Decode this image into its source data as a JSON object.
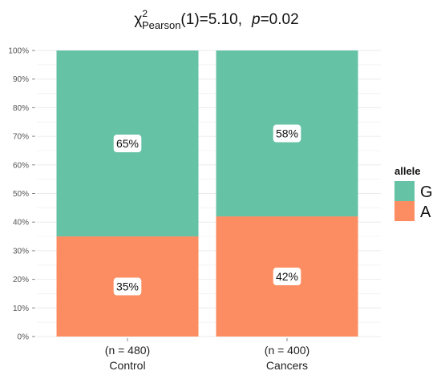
{
  "chart_data": {
    "type": "bar",
    "stacked": true,
    "percent": true,
    "title": {
      "chi": "χ",
      "sup": "2",
      "sub": "Pearson",
      "df": "(1)=5.10,",
      "p_label": "p",
      "p_value": "=0.02"
    },
    "categories": [
      "Control",
      "Cancers"
    ],
    "n_labels": [
      "(n = 480)",
      "(n = 400)"
    ],
    "series": [
      {
        "name": "A",
        "values": [
          35,
          42
        ],
        "labels": [
          "35%",
          "42%"
        ],
        "color": "#fc8d62"
      },
      {
        "name": "G",
        "values": [
          65,
          58
        ],
        "labels": [
          "65%",
          "58%"
        ],
        "color": "#66c2a5"
      }
    ],
    "ylim": [
      0,
      100
    ],
    "yticks": [
      "0%",
      "10%",
      "20%",
      "30%",
      "40%",
      "50%",
      "60%",
      "70%",
      "80%",
      "90%",
      "100%"
    ],
    "legend": {
      "title": "allele",
      "position": "right",
      "order": [
        "G",
        "A"
      ]
    },
    "grid": true,
    "grid_color": "#ebebeb"
  }
}
